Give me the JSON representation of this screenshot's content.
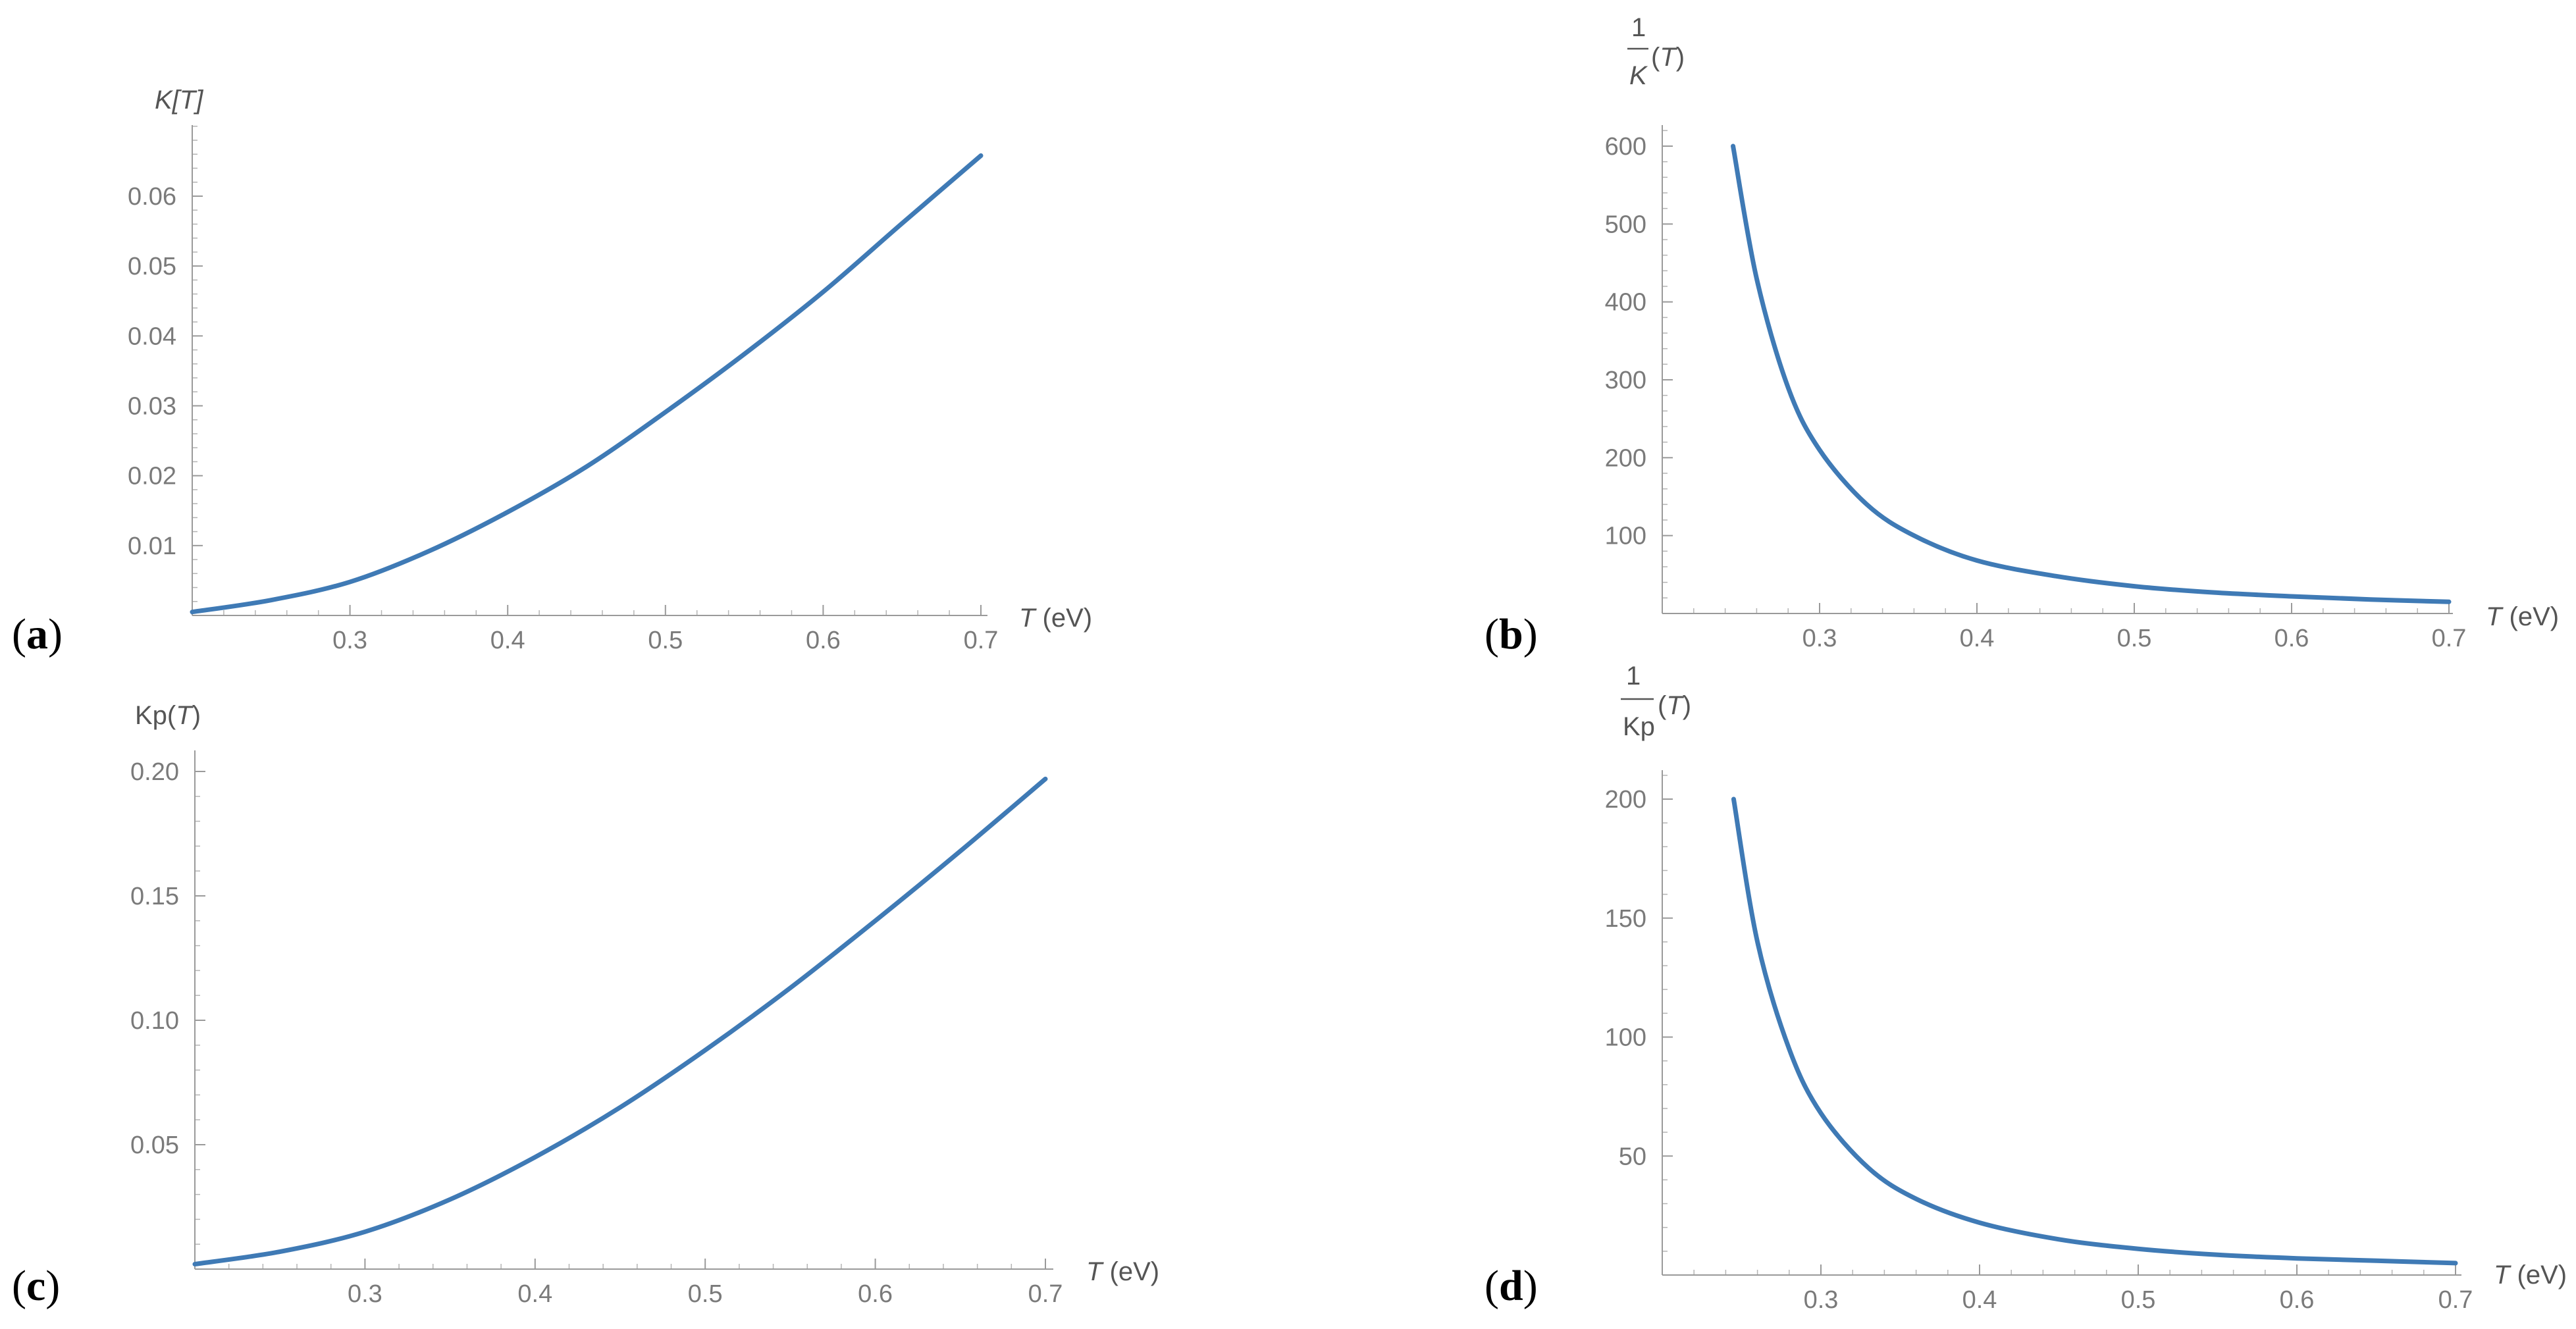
{
  "chart_data": [
    {
      "type": "line",
      "panel_label": "a",
      "ylabel": "K[T]",
      "xlabel": "T (eV)",
      "xlim": [
        0.2,
        0.7
      ],
      "ylim": [
        0,
        0.07
      ],
      "xticks": [
        0.3,
        0.4,
        0.5,
        0.6,
        0.7
      ],
      "xtick_labels": [
        "0.3",
        "0.4",
        "0.5",
        "0.6",
        "0.7"
      ],
      "yticks": [
        0.01,
        0.02,
        0.03,
        0.04,
        0.05,
        0.06
      ],
      "ytick_labels": [
        "0.01",
        "0.02",
        "0.03",
        "0.04",
        "0.05",
        "0.06"
      ],
      "grid": false,
      "color": "#3f7ab5",
      "series": [
        {
          "x": [
            0.2,
            0.25,
            0.3,
            0.35,
            0.4,
            0.45,
            0.5,
            0.55,
            0.6,
            0.65,
            0.7
          ],
          "y": [
            0.0005,
            0.0022,
            0.0048,
            0.0092,
            0.0148,
            0.0213,
            0.0291,
            0.0374,
            0.0463,
            0.0561,
            0.0658
          ]
        }
      ]
    },
    {
      "type": "line",
      "panel_label": "b",
      "ylabel": "1/K(T)",
      "xlabel": "T (eV)",
      "xlim": [
        0.2,
        0.7
      ],
      "ylim": [
        0,
        620
      ],
      "xticks": [
        0.3,
        0.4,
        0.5,
        0.6,
        0.7
      ],
      "xtick_labels": [
        "0.3",
        "0.4",
        "0.5",
        "0.6",
        "0.7"
      ],
      "yticks": [
        100,
        200,
        300,
        400,
        500,
        600
      ],
      "ytick_labels": [
        "100",
        "200",
        "300",
        "400",
        "500",
        "600"
      ],
      "grid": false,
      "color": "#3f7ab5",
      "series": [
        {
          "x": [
            0.245,
            0.26,
            0.28,
            0.3,
            0.33,
            0.36,
            0.4,
            0.45,
            0.5,
            0.55,
            0.6,
            0.65,
            0.7
          ],
          "y": [
            600,
            430,
            290,
            210,
            140,
            100,
            68,
            48,
            35,
            27,
            22,
            18,
            15
          ]
        }
      ]
    },
    {
      "type": "line",
      "panel_label": "c",
      "ylabel": "Kp(T)",
      "xlabel": "T (eV)",
      "xlim": [
        0.2,
        0.7
      ],
      "ylim": [
        0,
        0.21
      ],
      "xticks": [
        0.3,
        0.4,
        0.5,
        0.6,
        0.7
      ],
      "xtick_labels": [
        "0.3",
        "0.4",
        "0.5",
        "0.6",
        "0.7"
      ],
      "yticks": [
        0.05,
        0.1,
        0.15,
        0.2
      ],
      "ytick_labels": [
        "0.05",
        "0.10",
        "0.15",
        "0.20"
      ],
      "grid": false,
      "color": "#3f7ab5",
      "series": [
        {
          "x": [
            0.2,
            0.25,
            0.3,
            0.35,
            0.4,
            0.45,
            0.5,
            0.55,
            0.6,
            0.65,
            0.7
          ],
          "y": [
            0.002,
            0.007,
            0.015,
            0.028,
            0.045,
            0.065,
            0.088,
            0.113,
            0.14,
            0.168,
            0.197
          ]
        }
      ]
    },
    {
      "type": "line",
      "panel_label": "d",
      "ylabel": "1/Kp(T)",
      "xlabel": "T (eV)",
      "xlim": [
        0.2,
        0.7
      ],
      "ylim": [
        0,
        210
      ],
      "xticks": [
        0.3,
        0.4,
        0.5,
        0.6,
        0.7
      ],
      "xtick_labels": [
        "0.3",
        "0.4",
        "0.5",
        "0.6",
        "0.7"
      ],
      "yticks": [
        50,
        100,
        150,
        200
      ],
      "ytick_labels": [
        "50",
        "100",
        "150",
        "200"
      ],
      "grid": false,
      "color": "#3f7ab5",
      "series": [
        {
          "x": [
            0.245,
            0.26,
            0.28,
            0.3,
            0.33,
            0.36,
            0.4,
            0.45,
            0.5,
            0.55,
            0.6,
            0.65,
            0.7
          ],
          "y": [
            200,
            140,
            95,
            68,
            45,
            32,
            22,
            15,
            11,
            8.5,
            7,
            6,
            5
          ]
        }
      ]
    }
  ]
}
